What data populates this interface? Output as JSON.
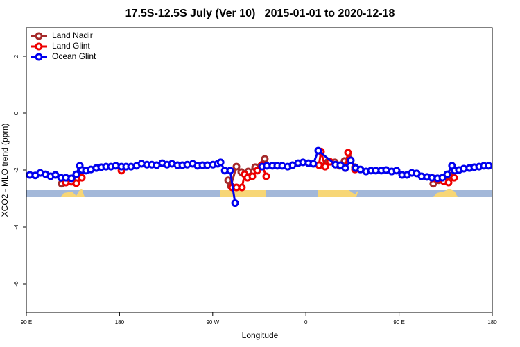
{
  "chart_data": {
    "type": "line",
    "title": "17.5S-12.5S July (Ver 10)   2015-01-01 to 2020-12-18",
    "x_label": "Longitude",
    "y_label": "XCO2 - MLO trend (ppm)",
    "xlim": [
      90,
      540
    ],
    "ylim": [
      -7,
      3
    ],
    "xticks": [
      {
        "value": 90,
        "label": "90 E"
      },
      180,
      {
        "value": 270,
        "label": "90 W"
      },
      {
        "value": 360,
        "label": "0"
      },
      {
        "value": 450,
        "label": "90 E"
      },
      {
        "value": 540,
        "label": "180"
      }
    ],
    "yticks": [
      -6,
      -4,
      -2,
      0,
      2
    ],
    "legend": "top-left",
    "series": [
      {
        "name": "Land Nadir",
        "color": "#a52a2a",
        "x": [
          124.1,
          129.5,
          134.2,
          144.2,
          null,
          284.9,
          287.5,
          292.9,
          297.6,
          304.3,
          311,
          320.3,
          null,
          373.2,
          381.3,
          388,
          392.7,
          397.3,
          402,
          407.4,
          null,
          483,
          488.4,
          493.7,
          498.4
        ],
        "values": [
          -2.48,
          -2.31,
          -2.34,
          -2.02,
          null,
          -2.36,
          -2.56,
          -1.88,
          -2.07,
          -2.05,
          -1.9,
          -1.61,
          null,
          -1.83,
          -1.71,
          -1.73,
          -1.85,
          -1.68,
          -1.61,
          -1.9,
          null,
          -2.48,
          -2.36,
          -2.29,
          -2.19
        ]
      },
      {
        "name": "Land Glint",
        "color": "#ee0000",
        "x": [
          128.2,
          133.5,
          138.2,
          143.6,
          null,
          181.8,
          null,
          288.9,
          292.9,
          298.2,
          300.9,
          303.6,
          308.3,
          313,
          317.7,
          321.7,
          null,
          372.6,
          374.6,
          378.6,
          383.3,
          398,
          400.7,
          407.4,
          null,
          483,
          487.7,
          493.1,
          497.8,
          503.1
        ],
        "values": [
          -2.44,
          -2.41,
          -2.46,
          -2.27,
          null,
          -2.02,
          null,
          -2.61,
          -2.61,
          -2.61,
          -2.15,
          -2.27,
          -2.22,
          -2.02,
          -1.83,
          -2.22,
          null,
          -1.83,
          -1.35,
          -1.88,
          -1.71,
          -1.93,
          -1.39,
          -1.98,
          null,
          -2.29,
          -2.31,
          -2.39,
          -2.44,
          -2.27
        ]
      },
      {
        "name": "Ocean Glint",
        "color": "#0000ee",
        "x": [
          93.3,
          98.7,
          103.4,
          108.7,
          113.4,
          118.1,
          123.5,
          128.2,
          133.5,
          138.2,
          141.6,
          143.6,
          147.6,
          152.3,
          157.6,
          162.3,
          167,
          171.7,
          176.4,
          181.8,
          186.4,
          191.1,
          196.5,
          201.2,
          206.5,
          211.2,
          215.9,
          221.2,
          225.9,
          230.6,
          236,
          240.7,
          245.4,
          250.7,
          255.4,
          260.1,
          264.8,
          270.2,
          274.9,
          277.6,
          281.6,
          286.9,
          291.6,
          null,
          317.7,
          322.3,
          327.7,
          332.4,
          337.1,
          342.4,
          347.1,
          352.5,
          357.2,
          362.5,
          367.2,
          371.9,
          388.6,
          393.3,
          398,
          403.4,
          408.1,
          412.7,
          418.1,
          422.8,
          427.5,
          432.8,
          437.5,
          442.9,
          447.6,
          452.9,
          457.6,
          462.3,
          467,
          471.7,
          477,
          481.7,
          487.1,
          491.8,
          496.5,
          501.1,
          503.8,
          507.8,
          512.5,
          517.9,
          522.6,
          527.3,
          531.9,
          536.6
        ],
        "values": [
          -2.17,
          -2.19,
          -2.1,
          -2.15,
          -2.22,
          -2.17,
          -2.27,
          -2.27,
          -2.29,
          -2.15,
          -1.85,
          -2,
          -2.02,
          -1.98,
          -1.93,
          -1.9,
          -1.88,
          -1.88,
          -1.85,
          -1.88,
          -1.88,
          -1.88,
          -1.85,
          -1.78,
          -1.81,
          -1.81,
          -1.83,
          -1.76,
          -1.81,
          -1.78,
          -1.83,
          -1.83,
          -1.81,
          -1.78,
          -1.85,
          -1.83,
          -1.83,
          -1.81,
          -1.78,
          -1.73,
          -2.02,
          -2.02,
          -3.16,
          null,
          -1.88,
          -1.85,
          -1.85,
          -1.85,
          -1.85,
          -1.88,
          -1.83,
          -1.76,
          -1.73,
          -1.76,
          -1.78,
          -1.32,
          -1.81,
          -1.83,
          -1.93,
          -1.66,
          -1.93,
          -1.98,
          -2.05,
          -2.02,
          -2.02,
          -2.02,
          -2,
          -2.05,
          -2.02,
          -2.17,
          -2.17,
          -2.1,
          -2.12,
          -2.22,
          -2.24,
          -2.27,
          -2.29,
          -2.27,
          -2.15,
          -1.85,
          -2.02,
          -2,
          -1.95,
          -1.93,
          -1.9,
          -1.88,
          -1.85,
          -1.85
        ]
      }
    ]
  }
}
